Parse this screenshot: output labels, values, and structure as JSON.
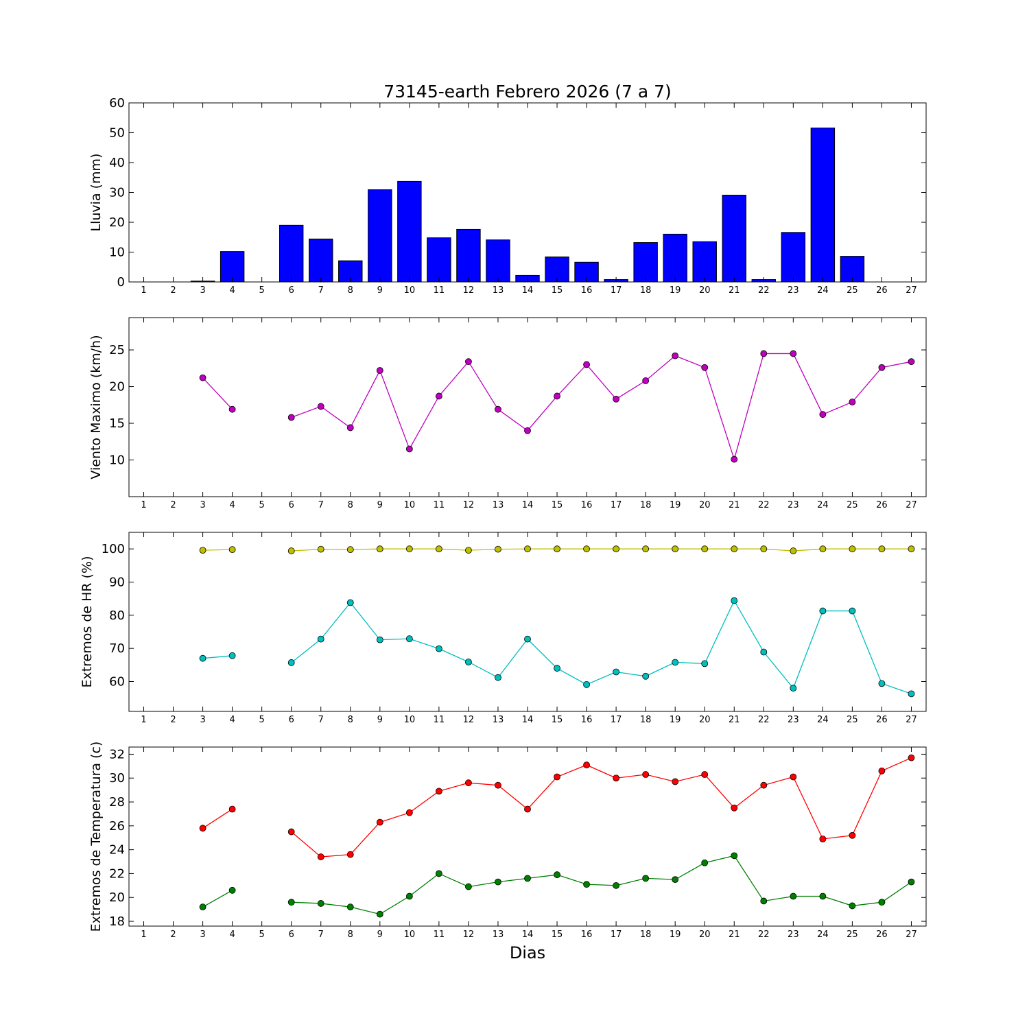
{
  "figure": {
    "title": "73145-earth Febrero 2026  (7 a 7)",
    "xlabel": "Dias"
  },
  "chart_data": [
    {
      "type": "bar",
      "ylabel": "Lluvia (mm)",
      "ylim": [
        0,
        60
      ],
      "yticks": [
        0,
        10,
        20,
        30,
        40,
        50,
        60
      ],
      "xlim": [
        0.5,
        27.5
      ],
      "categories": [
        1,
        2,
        3,
        4,
        5,
        6,
        7,
        8,
        9,
        10,
        11,
        12,
        13,
        14,
        15,
        16,
        17,
        18,
        19,
        20,
        21,
        22,
        23,
        24,
        25,
        26,
        27
      ],
      "color": "#0000ff",
      "series": [
        {
          "values": [
            0,
            0,
            0.3,
            10.2,
            0,
            19.0,
            14.4,
            7.1,
            30.9,
            33.7,
            14.8,
            17.6,
            14.1,
            2.2,
            8.4,
            6.6,
            0.8,
            13.2,
            16.0,
            13.5,
            29.1,
            0.8,
            16.6,
            51.6,
            8.6,
            0,
            0
          ]
        }
      ]
    },
    {
      "type": "line",
      "ylabel": "Viento Maximo (km/h)",
      "ylim": [
        5,
        29.4
      ],
      "yticks": [
        10,
        15,
        20,
        25
      ],
      "xlim": [
        0.5,
        27.5
      ],
      "x": [
        1,
        2,
        3,
        4,
        5,
        6,
        7,
        8,
        9,
        10,
        11,
        12,
        13,
        14,
        15,
        16,
        17,
        18,
        19,
        20,
        21,
        22,
        23,
        24,
        25,
        26,
        27
      ],
      "series": [
        {
          "color": "#bf00bf",
          "values": [
            null,
            null,
            21.2,
            16.9,
            null,
            15.8,
            17.3,
            14.4,
            22.2,
            11.5,
            18.7,
            23.4,
            16.9,
            14.0,
            18.7,
            23.0,
            18.3,
            20.8,
            24.2,
            22.6,
            10.1,
            24.5,
            24.5,
            16.2,
            17.9,
            22.6,
            23.4
          ]
        }
      ]
    },
    {
      "type": "line",
      "ylabel": "Extremos de HR (%)",
      "ylim": [
        51,
        105
      ],
      "yticks": [
        60,
        70,
        80,
        90,
        100
      ],
      "xlim": [
        0.5,
        27.5
      ],
      "x": [
        1,
        2,
        3,
        4,
        5,
        6,
        7,
        8,
        9,
        10,
        11,
        12,
        13,
        14,
        15,
        16,
        17,
        18,
        19,
        20,
        21,
        22,
        23,
        24,
        25,
        26,
        27
      ],
      "series": [
        {
          "color": "#bfbf00",
          "values": [
            null,
            null,
            99.6,
            99.8,
            null,
            99.4,
            99.9,
            99.8,
            100,
            100,
            100,
            99.6,
            99.9,
            100,
            100,
            100,
            100,
            100,
            100,
            100,
            100,
            100,
            99.4,
            100,
            100,
            100,
            100
          ]
        },
        {
          "color": "#00bfbf",
          "values": [
            null,
            null,
            67.0,
            67.8,
            null,
            65.7,
            72.8,
            83.8,
            72.6,
            72.9,
            69.9,
            65.9,
            61.2,
            72.8,
            64.0,
            59.1,
            62.9,
            61.6,
            65.8,
            65.4,
            84.4,
            68.9,
            58.0,
            81.3,
            81.3,
            59.4,
            56.3
          ]
        }
      ]
    },
    {
      "type": "line",
      "ylabel": "Extremos de Temperatura (c)",
      "ylim": [
        17.6,
        32.6
      ],
      "yticks": [
        18,
        20,
        22,
        24,
        26,
        28,
        30,
        32
      ],
      "xlim": [
        0.5,
        27.5
      ],
      "x": [
        1,
        2,
        3,
        4,
        5,
        6,
        7,
        8,
        9,
        10,
        11,
        12,
        13,
        14,
        15,
        16,
        17,
        18,
        19,
        20,
        21,
        22,
        23,
        24,
        25,
        26,
        27
      ],
      "series": [
        {
          "color": "#ff0000",
          "values": [
            null,
            null,
            25.8,
            27.4,
            null,
            25.5,
            23.4,
            23.6,
            26.3,
            27.1,
            28.9,
            29.6,
            29.4,
            27.4,
            30.1,
            31.1,
            30.0,
            30.3,
            29.7,
            30.3,
            27.5,
            29.4,
            30.1,
            24.9,
            25.2,
            30.6,
            31.7
          ]
        },
        {
          "color": "#007f00",
          "values": [
            null,
            null,
            19.2,
            20.6,
            null,
            19.6,
            19.5,
            19.2,
            18.6,
            20.1,
            22.0,
            20.9,
            21.3,
            21.6,
            21.9,
            21.1,
            21.0,
            21.6,
            21.5,
            22.9,
            23.5,
            19.7,
            20.1,
            20.1,
            19.3,
            19.6,
            21.3
          ]
        }
      ]
    }
  ]
}
